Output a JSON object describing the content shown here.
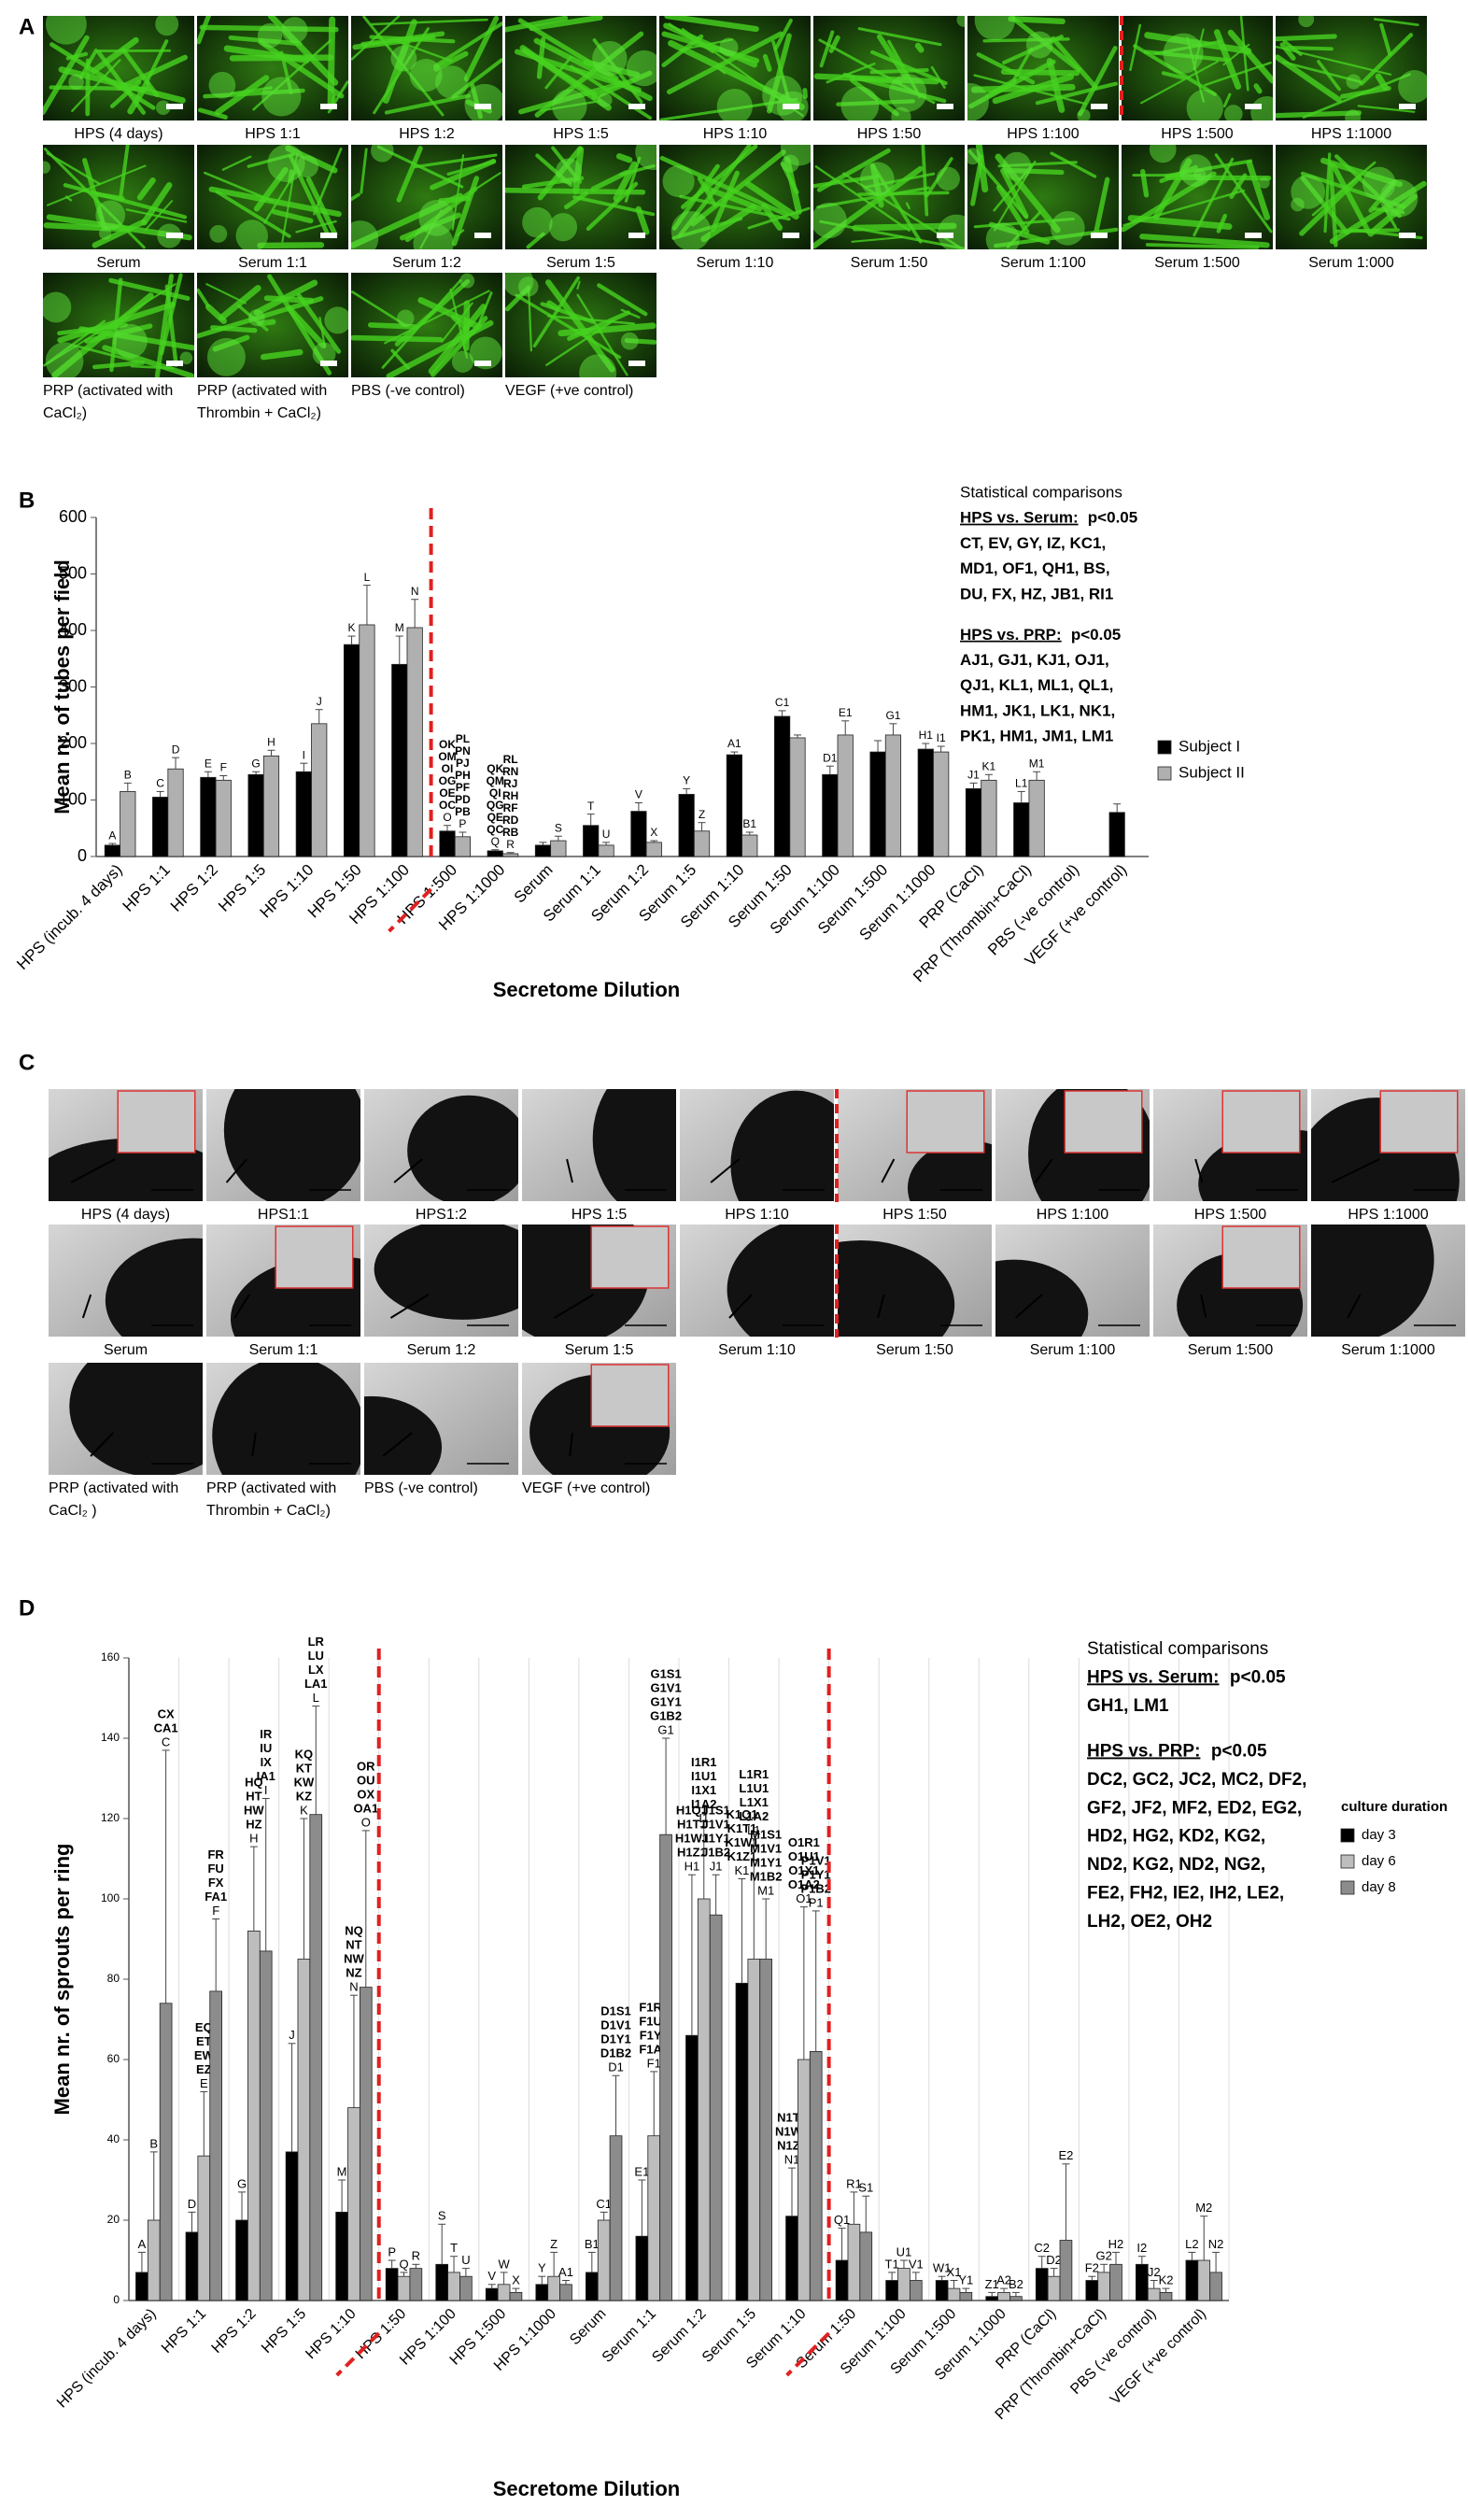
{
  "panel_a": {
    "letter": "A",
    "rows": [
      [
        [
          "HPS (4 days)"
        ],
        [
          "HPS 1:1"
        ],
        [
          "HPS 1:2"
        ],
        [
          "HPS 1:5"
        ],
        [
          "HPS 1:10"
        ],
        [
          "HPS 1:50"
        ],
        [
          "HPS 1:100"
        ],
        [
          "HPS 1:500"
        ],
        [
          "HPS 1:1000"
        ]
      ],
      [
        [
          "Serum"
        ],
        [
          "Serum 1:1"
        ],
        [
          "Serum 1:2"
        ],
        [
          "Serum 1:5"
        ],
        [
          "Serum 1:10"
        ],
        [
          "Serum 1:50"
        ],
        [
          "Serum 1:100"
        ],
        [
          "Serum 1:500"
        ],
        [
          "Serum 1:000"
        ]
      ],
      [
        [
          "PRP (activated with",
          "CaCl₂)"
        ],
        [
          "PRP (activated with",
          "Thrombin + CaCl₂)"
        ],
        [
          "PBS (-ve control)"
        ],
        [
          "VEGF (+ve control)"
        ]
      ]
    ]
  },
  "panel_c": {
    "letter": "C",
    "rows": [
      [
        [
          "HPS (4 days)"
        ],
        [
          "HPS1:1"
        ],
        [
          "HPS1:2"
        ],
        [
          "HPS 1:5"
        ],
        [
          "HPS 1:10"
        ],
        [
          "HPS 1:50"
        ],
        [
          "HPS 1:100"
        ],
        [
          "HPS 1:500"
        ],
        [
          "HPS 1:1000"
        ]
      ],
      [
        [
          "Serum"
        ],
        [
          "Serum 1:1"
        ],
        [
          "Serum 1:2"
        ],
        [
          "Serum 1:5"
        ],
        [
          "Serum 1:10"
        ],
        [
          "Serum 1:50"
        ],
        [
          "Serum 1:100"
        ],
        [
          "Serum 1:500"
        ],
        [
          "Serum 1:1000"
        ]
      ],
      [
        [
          "PRP (activated with",
          "CaCl₂ )"
        ],
        [
          "PRP (activated with",
          "Thrombin + CaCl₂)"
        ],
        [
          "PBS (-ve control)"
        ],
        [
          "VEGF (+ve control)"
        ]
      ]
    ]
  },
  "chart_data": [
    {
      "type": "bar",
      "panel": "B",
      "y_label": "Mean nr. of tubes per field",
      "x_label": "Secretome Dilution",
      "categories": [
        "HPS (incub. 4 days)",
        "HPS 1:1",
        "HPS 1:2",
        "HPS 1:5",
        "HPS 1:10",
        "HPS 1:50",
        "HPS 1:100",
        "HPS 1:500",
        "HPS 1:1000",
        "Serum",
        "Serum 1:1",
        "Serum 1:2",
        "Serum 1:5",
        "Serum 1:10",
        "Serum 1:50",
        "Serum 1:100",
        "Serum 1:500",
        "Serum 1:1000",
        "PRP (CaCl)",
        "PRP (Thrombin+CaCl)",
        "PBS (-ve control)",
        "VEGF (+ve control)"
      ],
      "ylim": [
        0,
        600
      ],
      "yticks": [
        0,
        100,
        200,
        300,
        400,
        500,
        600
      ],
      "grid": false,
      "legend": "right",
      "series": [
        {
          "name": "Subject I",
          "color": "#000000",
          "values": [
            20,
            105,
            140,
            145,
            150,
            375,
            340,
            45,
            10,
            20,
            55,
            80,
            110,
            180,
            248,
            145,
            185,
            190,
            120,
            95,
            null,
            78
          ],
          "errors": [
            3,
            10,
            10,
            5,
            15,
            15,
            50,
            10,
            2,
            5,
            20,
            15,
            10,
            5,
            10,
            15,
            20,
            10,
            10,
            20,
            null,
            15
          ],
          "labels": [
            [
              "A"
            ],
            [
              "C"
            ],
            [
              "E"
            ],
            [
              "G"
            ],
            [
              "I"
            ],
            [
              "K"
            ],
            [
              "M"
            ],
            [
              "OK",
              "OM",
              "OI",
              "OG",
              "OE",
              "OC",
              "O"
            ],
            [
              "QK",
              "QM",
              "QI",
              "QG",
              "QE",
              "QC",
              "Q"
            ],
            null,
            [
              "T"
            ],
            [
              "V"
            ],
            [
              "Y"
            ],
            [
              "A1"
            ],
            [
              "C1"
            ],
            [
              "D1"
            ],
            null,
            [
              "H1"
            ],
            [
              "J1"
            ],
            [
              "L1"
            ],
            null,
            null
          ]
        },
        {
          "name": "Subject II",
          "color": "#b0b0b0",
          "values": [
            115,
            155,
            135,
            178,
            235,
            410,
            405,
            35,
            5,
            28,
            20,
            25,
            45,
            38,
            210,
            215,
            215,
            185,
            135,
            135,
            null,
            null
          ],
          "errors": [
            15,
            20,
            8,
            10,
            25,
            70,
            50,
            8,
            2,
            8,
            5,
            3,
            15,
            5,
            5,
            25,
            20,
            10,
            10,
            15,
            null,
            null
          ],
          "labels": [
            [
              "B"
            ],
            [
              "D"
            ],
            [
              "F"
            ],
            [
              "H"
            ],
            [
              "J"
            ],
            [
              "L"
            ],
            [
              "N"
            ],
            [
              "PL",
              "PN",
              "PJ",
              "PH",
              "PF",
              "PD",
              "PB",
              "P"
            ],
            [
              "RL",
              "RN",
              "RJ",
              "RH",
              "RF",
              "RD",
              "RB",
              "R"
            ],
            [
              "S"
            ],
            [
              "U"
            ],
            [
              "X"
            ],
            [
              "Z"
            ],
            [
              "B1"
            ],
            null,
            [
              "E1"
            ],
            [
              "G1"
            ],
            [
              "I1"
            ],
            [
              "K1"
            ],
            [
              "M1"
            ],
            null,
            null
          ]
        }
      ],
      "stats": {
        "title": "Statistical comparisons",
        "groups": [
          {
            "heading": "HPS vs. Serum:",
            "p": "p<0.05",
            "lines": [
              "CT, EV, GY, IZ, KC1,",
              "MD1, OF1, QH1, BS,",
              "DU, FX, HZ, JB1, RI1"
            ]
          },
          {
            "heading": "HPS vs. PRP:",
            "p": "p<0.05",
            "lines": [
              "AJ1, GJ1, KJ1, OJ1,",
              "QJ1, KL1, ML1, QL1,",
              "HM1, JK1, LK1, NK1,",
              "PK1, HM1, JM1, LM1"
            ]
          }
        ]
      }
    },
    {
      "type": "bar",
      "panel": "D",
      "y_label": "Mean nr. of sprouts per ring",
      "x_label": "Secretome Dilution",
      "categories": [
        "HPS (incub. 4 days)",
        "HPS 1:1",
        "HPS 1:2",
        "HPS 1:5",
        "HPS 1:10",
        "HPS 1:50",
        "HPS 1:100",
        "HPS 1:500",
        "HPS 1:1000",
        "Serum",
        "Serum 1:1",
        "Serum 1:2",
        "Serum 1:5",
        "Serum 1:10",
        "Serum 1:50",
        "Serum 1:100",
        "Serum 1:500",
        "Serum 1:1000",
        "PRP (CaCl)",
        "PRP (Thrombin+CaCl)",
        "PBS (-ve control)",
        "VEGF (+ve control)"
      ],
      "ylim": [
        0,
        160
      ],
      "yticks": [
        0,
        20,
        40,
        60,
        80,
        100,
        120,
        140,
        160
      ],
      "grid": true,
      "legend": "right",
      "legend_title": "culture duration",
      "series": [
        {
          "name": "day 3",
          "color": "#000000",
          "values": [
            7,
            17,
            20,
            37,
            22,
            8,
            9,
            3,
            4,
            7,
            16,
            66,
            79,
            21,
            10,
            5,
            5,
            1,
            8,
            5,
            9,
            10
          ],
          "errors": [
            5,
            5,
            7,
            27,
            8,
            2,
            10,
            1,
            2,
            5,
            14,
            40,
            26,
            12,
            8,
            2,
            1,
            1,
            3,
            1,
            2,
            2
          ],
          "labels": [
            [
              "A"
            ],
            [
              "D"
            ],
            [
              "G"
            ],
            [
              "J"
            ],
            [
              "M"
            ],
            [
              "P"
            ],
            [
              "S"
            ],
            [
              "V"
            ],
            [
              "Y"
            ],
            [
              "B1"
            ],
            [
              "E1"
            ],
            [
              "H1Q1",
              "H1T1",
              "H1W1",
              "H1Z1",
              "H1"
            ],
            [
              "K1Q1",
              "K1T1",
              "K1W1",
              "K1Z1",
              "K1"
            ],
            [
              "N1T1",
              "N1W1",
              "N1Z1",
              "N1"
            ],
            [
              "Q1"
            ],
            [
              "T1"
            ],
            [
              "W1"
            ],
            [
              "Z1"
            ],
            [
              "C2"
            ],
            [
              "F2"
            ],
            [
              "I2"
            ],
            [
              "L2"
            ]
          ]
        },
        {
          "name": "day 6",
          "color": "#bdbdbd",
          "values": [
            20,
            36,
            92,
            85,
            48,
            6,
            7,
            4,
            6,
            20,
            41,
            100,
            85,
            60,
            19,
            8,
            3,
            2,
            6,
            7,
            3,
            10
          ],
          "errors": [
            17,
            16,
            21,
            35,
            28,
            1,
            4,
            3,
            6,
            2,
            16,
            18,
            30,
            38,
            8,
            2,
            2,
            1,
            2,
            2,
            2,
            11
          ],
          "labels": [
            [
              "B"
            ],
            [
              "EQ",
              "ET",
              "EW",
              "EZ",
              "E"
            ],
            [
              "HQ",
              "HT",
              "HW",
              "HZ",
              "H"
            ],
            [
              "KQ",
              "KT",
              "KW",
              "KZ",
              "K"
            ],
            [
              "NQ",
              "NT",
              "NW",
              "NZ",
              "N"
            ],
            [
              "Q"
            ],
            [
              "T"
            ],
            [
              "W"
            ],
            [
              "Z"
            ],
            [
              "C1"
            ],
            [
              "F1R1",
              "F1U1",
              "F1Y1",
              "F1A2",
              "F1"
            ],
            [
              "I1R1",
              "I1U1",
              "I1X1",
              "I1A2",
              "I1"
            ],
            [
              "L1R1",
              "L1U1",
              "L1X1",
              "L1A2",
              "L1"
            ],
            [
              "O1R1",
              "O1U1",
              "O1X1",
              "O1A2",
              "O1"
            ],
            [
              "R1"
            ],
            [
              "U1"
            ],
            [
              "X1"
            ],
            [
              "A2"
            ],
            [
              "D2"
            ],
            [
              "G2"
            ],
            [
              "J2"
            ],
            [
              "M2"
            ]
          ]
        },
        {
          "name": "day 8",
          "color": "#8c8c8c",
          "values": [
            74,
            77,
            87,
            121,
            78,
            8,
            6,
            2,
            4,
            41,
            116,
            96,
            85,
            62,
            17,
            5,
            2,
            1,
            15,
            9,
            2,
            7
          ],
          "errors": [
            63,
            18,
            38,
            27,
            39,
            1,
            2,
            1,
            1,
            15,
            24,
            10,
            15,
            35,
            9,
            2,
            1,
            1,
            19,
            3,
            1,
            5
          ],
          "labels": [
            [
              "CX",
              "CA1",
              "C"
            ],
            [
              "FR",
              "FU",
              "FX",
              "FA1",
              "F"
            ],
            [
              "IR",
              "IU",
              "IX",
              "IA1",
              "I"
            ],
            [
              "LR",
              "LU",
              "LX",
              "LA1",
              "L"
            ],
            [
              "OR",
              "OU",
              "OX",
              "OA1",
              "O"
            ],
            [
              "R"
            ],
            [
              "U"
            ],
            [
              "X"
            ],
            [
              "A1"
            ],
            [
              "D1S1",
              "D1V1",
              "D1Y1",
              "D1B2",
              "D1"
            ],
            [
              "G1S1",
              "G1V1",
              "G1Y1",
              "G1B2",
              "G1"
            ],
            [
              "J1S1",
              "J1V1",
              "J1Y1",
              "J1B2",
              "J1"
            ],
            [
              "M1S1",
              "M1V1",
              "M1Y1",
              "M1B2",
              "M1"
            ],
            [
              "P1V1",
              "P1Y1",
              "P1B2",
              "P1"
            ],
            [
              "S1"
            ],
            [
              "V1"
            ],
            [
              "Y1"
            ],
            [
              "B2"
            ],
            [
              "E2"
            ],
            [
              "H2"
            ],
            [
              "K2"
            ],
            [
              "N2"
            ]
          ]
        }
      ],
      "stats": {
        "title": "Statistical comparisons",
        "groups": [
          {
            "heading": "HPS vs. Serum:",
            "p": "p<0.05",
            "lines": [
              "GH1, LM1"
            ]
          },
          {
            "heading": "HPS vs. PRP:",
            "p": "p<0.05",
            "lines": [
              "DC2, GC2, JC2, MC2, DF2,",
              "GF2, JF2, MF2, ED2, EG2,",
              "HD2, HG2, KD2, KG2,",
              "ND2, KG2, ND2, NG2,",
              "FE2, FH2, IE2, IH2, LE2,",
              "LH2, OE2, OH2"
            ]
          }
        ]
      }
    }
  ]
}
